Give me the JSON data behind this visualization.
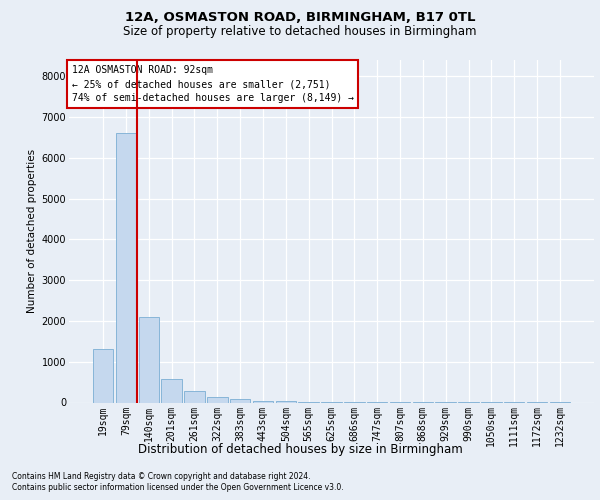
{
  "title1": "12A, OSMASTON ROAD, BIRMINGHAM, B17 0TL",
  "title2": "Size of property relative to detached houses in Birmingham",
  "xlabel": "Distribution of detached houses by size in Birmingham",
  "ylabel": "Number of detached properties",
  "footnote1": "Contains HM Land Registry data © Crown copyright and database right 2024.",
  "footnote2": "Contains public sector information licensed under the Open Government Licence v3.0.",
  "annotation_line1": "12A OSMASTON ROAD: 92sqm",
  "annotation_line2": "← 25% of detached houses are smaller (2,751)",
  "annotation_line3": "74% of semi-detached houses are larger (8,149) →",
  "bar_labels": [
    "19sqm",
    "79sqm",
    "140sqm",
    "201sqm",
    "261sqm",
    "322sqm",
    "383sqm",
    "443sqm",
    "504sqm",
    "565sqm",
    "625sqm",
    "686sqm",
    "747sqm",
    "807sqm",
    "868sqm",
    "929sqm",
    "990sqm",
    "1050sqm",
    "1111sqm",
    "1172sqm",
    "1232sqm"
  ],
  "bar_values": [
    1300,
    6600,
    2100,
    580,
    280,
    145,
    75,
    45,
    35,
    8,
    5,
    5,
    5,
    5,
    5,
    5,
    5,
    5,
    5,
    5,
    5
  ],
  "bar_color": "#c5d8ee",
  "bar_edge_color": "#7baed4",
  "vline_color": "#cc0000",
  "vline_x": 1.5,
  "ylim": [
    0,
    8400
  ],
  "yticks": [
    0,
    1000,
    2000,
    3000,
    4000,
    5000,
    6000,
    7000,
    8000
  ],
  "bg_color": "#e8eef6",
  "grid_color": "#ffffff",
  "annotation_box_facecolor": "#ffffff",
  "annotation_box_edgecolor": "#cc0000",
  "title1_fontsize": 9.5,
  "title2_fontsize": 8.5,
  "ylabel_fontsize": 7.5,
  "xlabel_fontsize": 8.5,
  "tick_fontsize": 7,
  "annot_fontsize": 7,
  "footnote_fontsize": 5.5
}
